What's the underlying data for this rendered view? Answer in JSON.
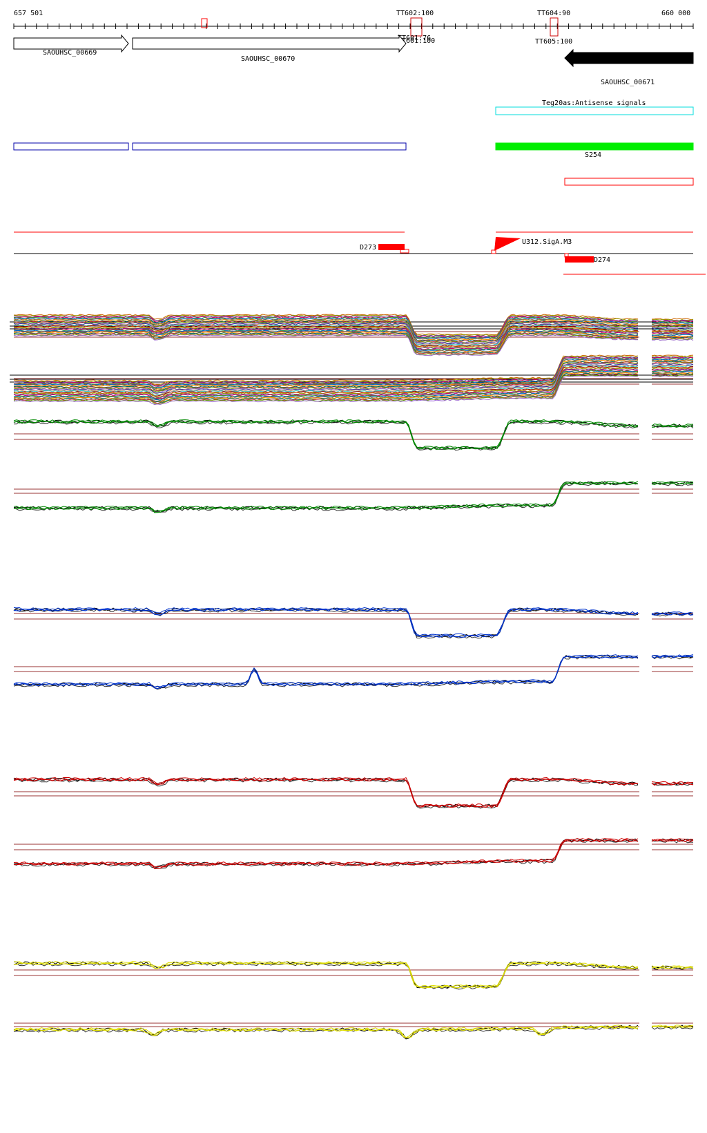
{
  "ruler": {
    "start_label": "657 501",
    "end_label": "660 000",
    "terminators": [
      {
        "label": "TT602:100"
      },
      {
        "label": "TT601:76"
      },
      {
        "label": "TT601:100"
      },
      {
        "label": "TT604:90"
      },
      {
        "label": "TT605:100"
      }
    ]
  },
  "genes": [
    {
      "label": "SAOUHSC_00669",
      "strand": "+"
    },
    {
      "label": "SAOUHSC_00670",
      "strand": "+"
    },
    {
      "label": "SAOUHSC_00671",
      "strand": "-"
    }
  ],
  "features": {
    "antisense_label": "Teg20as:Antisense signals",
    "srna_label": "S254",
    "promoter_label": "U312.SigA.M3",
    "d_labels": [
      "D273",
      "D274"
    ]
  },
  "colors": {
    "gene_fill_plus": "#ffffff",
    "gene_fill_minus": "#000000",
    "antisense": "#00dddd",
    "blue_box": "#0000aa",
    "srna": "#00ee00",
    "feature_red": "#ff0000",
    "threshold": "#993333",
    "green": "#008800",
    "blue": "#0033cc",
    "red": "#cc0000",
    "yellow": "#dddd00"
  },
  "expression_panels": [
    {
      "name": "multi-condition-plus",
      "color": "multi"
    },
    {
      "name": "multi-condition-minus",
      "color": "multi"
    },
    {
      "name": "green-plus",
      "color": "green"
    },
    {
      "name": "green-minus",
      "color": "green"
    },
    {
      "name": "blue-plus",
      "color": "blue"
    },
    {
      "name": "blue-minus",
      "color": "blue"
    },
    {
      "name": "red-plus",
      "color": "red"
    },
    {
      "name": "red-minus",
      "color": "red"
    },
    {
      "name": "yellow-plus",
      "color": "yellow"
    },
    {
      "name": "yellow-minus",
      "color": "yellow"
    }
  ]
}
